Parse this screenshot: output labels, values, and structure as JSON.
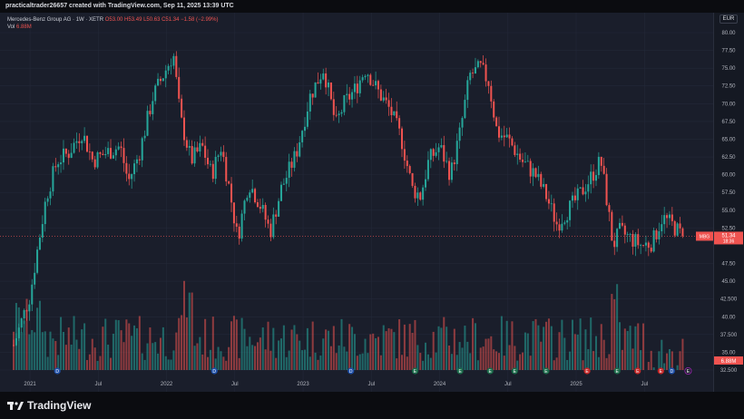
{
  "header": {
    "text": "practicaltrader26657 created with TradingView.com, Sep 11, 2025 13:39 UTC"
  },
  "legend": {
    "symbol": "Mercedes-Benz Group AG · 1W · XETR",
    "ohlc": "O53.00 H53.49 L50.63 C51.34 −1.58 (−2.99%)",
    "vol_label": "Vol",
    "vol_value": "6.88M"
  },
  "currency": "EUR",
  "price_axis": {
    "ticks": [
      "80.00",
      "77.50",
      "75.00",
      "72.50",
      "70.00",
      "67.50",
      "65.00",
      "62.50",
      "60.00",
      "57.50",
      "55.00",
      "52.50",
      "47.50",
      "45.00",
      "42.500",
      "40.00",
      "37.500",
      "35.00",
      "32.500"
    ],
    "tick_values": [
      80,
      77.5,
      75,
      72.5,
      70,
      67.5,
      65,
      62.5,
      60,
      57.5,
      55,
      52.5,
      47.5,
      45,
      42.5,
      40,
      37.5,
      35,
      32.5
    ],
    "last_price_label": "51.34",
    "last_price_ticker": "MBG",
    "last_price_sub": "18:36"
  },
  "time_axis": {
    "labels": [
      "2021",
      "Jul",
      "2022",
      "Jul",
      "2023",
      "Jul",
      "2024",
      "Jul",
      "2025",
      "Jul"
    ],
    "label_values": [
      2021.0,
      2021.5,
      2022.0,
      2022.5,
      2023.0,
      2023.5,
      2024.0,
      2024.5,
      2025.0,
      2025.5
    ]
  },
  "events": [
    {
      "t": 2021.2,
      "kind": "dividend",
      "glyph": "D"
    },
    {
      "t": 2022.35,
      "kind": "dividend",
      "glyph": "D"
    },
    {
      "t": 2023.35,
      "kind": "dividend",
      "glyph": "D"
    },
    {
      "t": 2023.82,
      "kind": "earnings",
      "glyph": "E"
    },
    {
      "t": 2024.15,
      "kind": "earnings",
      "glyph": "E"
    },
    {
      "t": 2024.37,
      "kind": "earnings",
      "glyph": "E"
    },
    {
      "t": 2024.55,
      "kind": "earnings",
      "glyph": "E"
    },
    {
      "t": 2024.78,
      "kind": "earnings",
      "glyph": "E"
    },
    {
      "t": 2025.08,
      "kind": "earnings-miss",
      "glyph": "E"
    },
    {
      "t": 2025.3,
      "kind": "earnings",
      "glyph": "E"
    },
    {
      "t": 2025.45,
      "kind": "earnings-miss",
      "glyph": "E"
    },
    {
      "t": 2025.62,
      "kind": "earnings-miss",
      "glyph": "E"
    },
    {
      "t": 2025.7,
      "kind": "dividend",
      "glyph": "D"
    },
    {
      "t": 2025.82,
      "kind": "upcoming",
      "glyph": "E"
    }
  ],
  "colors": {
    "up": "#26a69a",
    "down": "#ef5350",
    "grid": "#232838",
    "background": "#1a1e2b"
  },
  "brand": "TradingView",
  "chart_data": {
    "type": "candlestick",
    "ylim": [
      32.5,
      80.0
    ],
    "xlim": [
      2020.82,
      2025.95
    ],
    "last_price": 51.34,
    "anchors": [
      [
        2020.88,
        36.0
      ],
      [
        2021.0,
        43.0
      ],
      [
        2021.05,
        49.0
      ],
      [
        2021.12,
        57.0
      ],
      [
        2021.2,
        62.0
      ],
      [
        2021.28,
        63.0
      ],
      [
        2021.38,
        66.0
      ],
      [
        2021.46,
        62.0
      ],
      [
        2021.55,
        63.0
      ],
      [
        2021.66,
        64.0
      ],
      [
        2021.72,
        59.0
      ],
      [
        2021.8,
        63.0
      ],
      [
        2021.9,
        71.0
      ],
      [
        2022.0,
        75.0
      ],
      [
        2022.05,
        77.0
      ],
      [
        2022.1,
        68.0
      ],
      [
        2022.18,
        62.0
      ],
      [
        2022.26,
        64.0
      ],
      [
        2022.33,
        60.0
      ],
      [
        2022.4,
        64.0
      ],
      [
        2022.46,
        58.0
      ],
      [
        2022.52,
        51.0
      ],
      [
        2022.6,
        59.0
      ],
      [
        2022.68,
        56.0
      ],
      [
        2022.76,
        52.0
      ],
      [
        2022.84,
        58.0
      ],
      [
        2022.95,
        63.0
      ],
      [
        2023.05,
        71.0
      ],
      [
        2023.15,
        75.0
      ],
      [
        2023.24,
        67.0
      ],
      [
        2023.3,
        70.0
      ],
      [
        2023.38,
        72.0
      ],
      [
        2023.46,
        75.0
      ],
      [
        2023.54,
        72.0
      ],
      [
        2023.64,
        69.0
      ],
      [
        2023.72,
        65.0
      ],
      [
        2023.8,
        58.0
      ],
      [
        2023.86,
        57.0
      ],
      [
        2023.92,
        62.0
      ],
      [
        2024.0,
        64.0
      ],
      [
        2024.08,
        60.0
      ],
      [
        2024.15,
        66.0
      ],
      [
        2024.22,
        74.0
      ],
      [
        2024.3,
        75.0
      ],
      [
        2024.36,
        73.0
      ],
      [
        2024.42,
        66.0
      ],
      [
        2024.5,
        65.0
      ],
      [
        2024.6,
        62.0
      ],
      [
        2024.7,
        60.0
      ],
      [
        2024.78,
        57.0
      ],
      [
        2024.86,
        53.0
      ],
      [
        2024.94,
        55.0
      ],
      [
        2025.02,
        57.0
      ],
      [
        2025.12,
        60.0
      ],
      [
        2025.18,
        62.0
      ],
      [
        2025.22,
        57.0
      ],
      [
        2025.27,
        50.0
      ],
      [
        2025.32,
        52.0
      ],
      [
        2025.4,
        51.0
      ],
      [
        2025.48,
        50.0
      ],
      [
        2025.56,
        50.5
      ],
      [
        2025.63,
        54.0
      ],
      [
        2025.7,
        53.0
      ],
      [
        2025.78,
        51.34
      ]
    ]
  }
}
